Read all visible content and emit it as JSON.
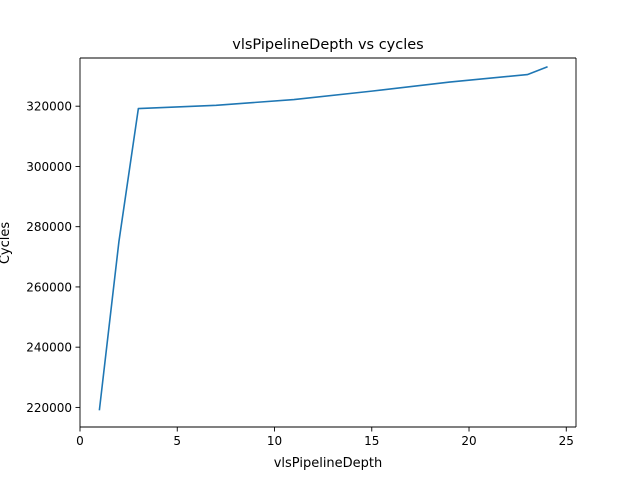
{
  "chart_data": {
    "type": "line",
    "title": "vlsPipelineDepth vs cycles",
    "xlabel": "vlsPipelineDepth",
    "ylabel": "Cycles",
    "xlim": [
      0,
      25.5
    ],
    "ylim": [
      213500,
      336000
    ],
    "xticks": [
      0,
      5,
      10,
      15,
      20,
      25
    ],
    "yticks": [
      220000,
      240000,
      260000,
      280000,
      300000,
      320000
    ],
    "grid": false,
    "legend": "none",
    "series": [
      {
        "color": "#1f77b4",
        "x": [
          1,
          2,
          3,
          7,
          11,
          15,
          19,
          23,
          24
        ],
        "y": [
          219300,
          275000,
          319200,
          320300,
          322200,
          325000,
          328000,
          330500,
          333000
        ]
      }
    ]
  }
}
